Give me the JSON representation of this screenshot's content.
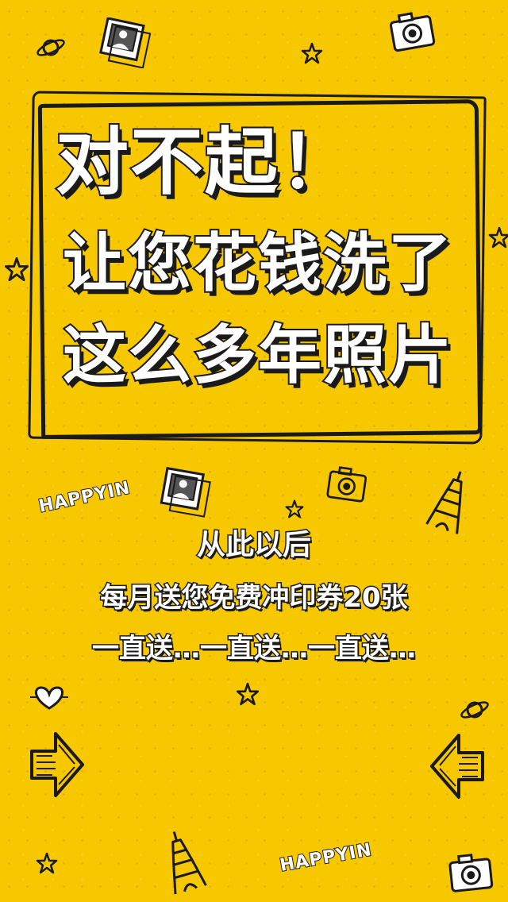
{
  "headline": {
    "line1": "对不起！",
    "line2": "让您花钱洗了",
    "line3": "这么多年照片"
  },
  "subtext": {
    "line1": "从此以后",
    "line2": "每月送您免费冲印券20张",
    "line3": "一直送…一直送…一直送…"
  },
  "stickers": {
    "happyin_top": "HAPPYIN",
    "happyin_bottom": "HAPPYIN"
  },
  "colors": {
    "background": "#f7c800",
    "ink": "#1a1a1a",
    "text_fill": "#ffffff"
  },
  "icons": [
    "camera-icon",
    "photo-icon",
    "star-icon",
    "planet-icon",
    "eiffel-tower-icon",
    "arrow-left-icon",
    "arrow-right-icon",
    "heart-icon"
  ]
}
